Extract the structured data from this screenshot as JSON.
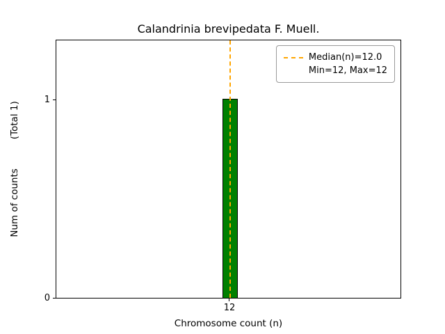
{
  "chart_data": {
    "type": "bar",
    "title": "Calandrinia brevipedata F. Muell.",
    "xlabel": "Chromosome count (n)",
    "ylabel": "Num of counts     (Total 1)",
    "ylabel_parts": [
      "Num of counts",
      "(Total 1)"
    ],
    "categories": [
      12
    ],
    "values": [
      1
    ],
    "xticks": [
      "12"
    ],
    "yticks": [
      "0",
      "1"
    ],
    "ylim": [
      0,
      1.3
    ],
    "grid": false,
    "bar_color": "#008000",
    "bar_edge_color": "#000000",
    "median_line": {
      "value": 12.0,
      "color": "#ffa500",
      "style": "dashed"
    },
    "legend": {
      "position": "upper right",
      "entries": [
        "Median(n)=12.0",
        "Min=12, Max=12"
      ]
    }
  }
}
